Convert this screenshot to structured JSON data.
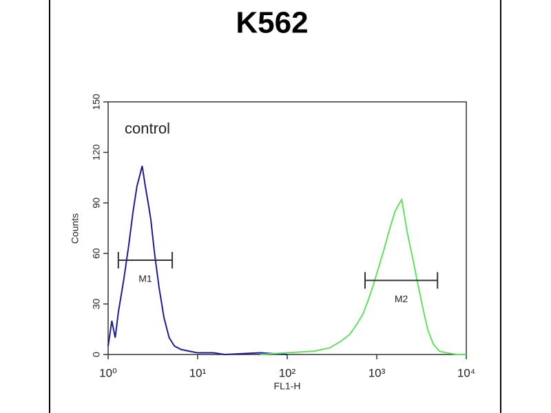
{
  "chart_data": {
    "type": "line",
    "title": "K562",
    "xlabel": "FL1-H",
    "ylabel": "Counts",
    "xlog": true,
    "xlim": [
      1,
      10000
    ],
    "xticks": [
      {
        "value": 1,
        "label": "10⁰"
      },
      {
        "value": 10,
        "label": "10¹"
      },
      {
        "value": 100,
        "label": "10²"
      },
      {
        "value": 1000,
        "label": "10³"
      },
      {
        "value": 10000,
        "label": "10⁴"
      }
    ],
    "ylim": [
      0,
      150
    ],
    "yticks": [
      0,
      30,
      60,
      90,
      120,
      150
    ],
    "series": [
      {
        "name": "control",
        "color": "#1c1c8a",
        "x": [
          1.0,
          1.1,
          1.2,
          1.3,
          1.5,
          1.7,
          1.9,
          2.1,
          2.3,
          2.4,
          2.6,
          2.8,
          3.0,
          3.3,
          3.7,
          4.2,
          4.8,
          5.5,
          6.5,
          8,
          10,
          15,
          20,
          50,
          100
        ],
        "values": [
          5,
          20,
          10,
          25,
          45,
          65,
          85,
          100,
          108,
          112,
          100,
          90,
          80,
          60,
          40,
          22,
          10,
          5,
          3,
          2,
          1,
          1,
          0,
          1,
          0
        ]
      },
      {
        "color": "#5fe05f",
        "x": [
          50,
          100,
          200,
          300,
          400,
          500,
          600,
          700,
          800,
          900,
          1000,
          1200,
          1400,
          1600,
          1800,
          1900,
          2000,
          2200,
          2500,
          2800,
          3200,
          3700,
          4300,
          5000,
          6000,
          8000,
          10000
        ],
        "values": [
          0,
          1,
          2,
          4,
          8,
          12,
          18,
          24,
          32,
          40,
          48,
          62,
          75,
          85,
          90,
          92,
          85,
          72,
          58,
          45,
          30,
          15,
          6,
          2,
          1,
          0,
          0
        ]
      }
    ],
    "markers": [
      {
        "label": "M1",
        "x": [
          1.3,
          5.2
        ],
        "y": 56
      },
      {
        "label": "M2",
        "x": [
          740,
          4770
        ],
        "y": 44
      }
    ]
  }
}
